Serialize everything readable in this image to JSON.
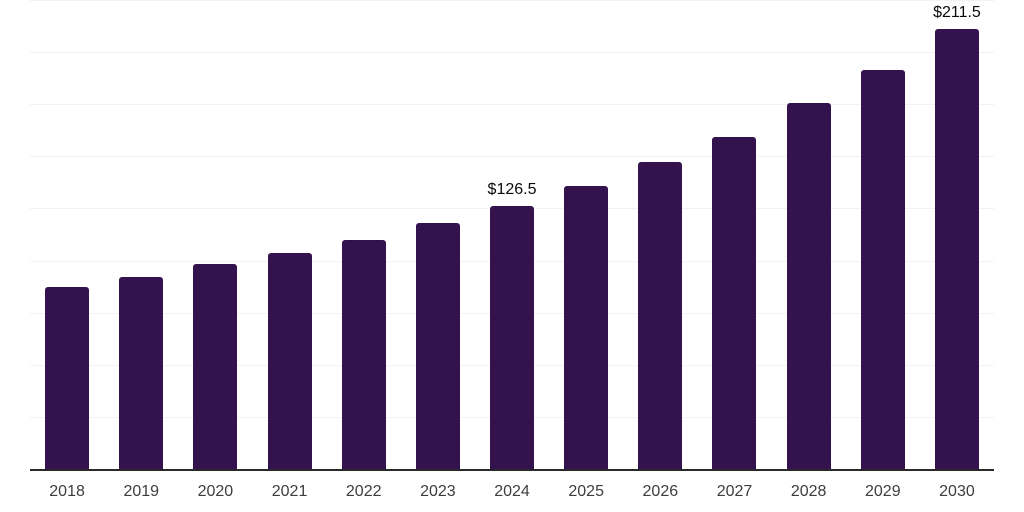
{
  "chart_data": {
    "type": "bar",
    "title": "",
    "xlabel": "",
    "ylabel": "",
    "categories": [
      "2018",
      "2019",
      "2020",
      "2021",
      "2022",
      "2023",
      "2024",
      "2025",
      "2026",
      "2027",
      "2028",
      "2029",
      "2030"
    ],
    "values": [
      88,
      92.5,
      99,
      104,
      110.5,
      118.5,
      126.5,
      136.5,
      148,
      160,
      176,
      192,
      211.5
    ],
    "annotations": [
      {
        "category": "2024",
        "text": "$126.5"
      },
      {
        "category": "2030",
        "text": "$211.5"
      }
    ],
    "ylim": [
      0,
      225.5
    ],
    "grid_step": 25,
    "grid": "horizontal-only",
    "y_axis_tick_labels_visible": false,
    "legend_position": "none",
    "colors": {
      "bar": "#33124d",
      "annotation_text": "#0a0a0a",
      "tick_label": "#3d3d3d",
      "axis_line": "#2a2a2a",
      "gridline": "#f2f2f2",
      "background": "#ffffff"
    }
  }
}
